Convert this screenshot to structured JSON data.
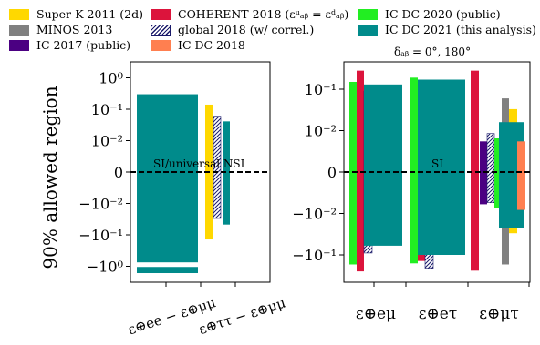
{
  "legend": [
    {
      "label": "Super-K 2011 (2d)",
      "color": "#ffd800",
      "style": "solid"
    },
    {
      "label": "MINOS 2013",
      "color": "#808080",
      "style": "solid"
    },
    {
      "label": "IC 2017 (public)",
      "color": "#4b0082",
      "style": "solid"
    },
    {
      "label": "COHERENT 2018 (εᵘₐᵦ = εᵈₐᵦ)",
      "color": "#dc143c",
      "style": "solid"
    },
    {
      "label": "global 2018 (w/ correl.)",
      "color": "#1a1a6a",
      "style": "hatched"
    },
    {
      "label": "IC DC 2018",
      "color": "#ff7f50",
      "style": "solid"
    },
    {
      "label": "IC DC 2020 (public)",
      "color": "#22ee22",
      "style": "solid"
    },
    {
      "label": "IC DC 2021 (this analysis)",
      "color": "#008b8b",
      "style": "solid"
    }
  ],
  "legend_note": "δₐᵦ = 0°, 180°",
  "chart_data": [
    {
      "type": "bar",
      "panel": "left",
      "ylabel": "90% allowed region",
      "yscale": "symlog",
      "ylim": [
        -2,
        2
      ],
      "yticks": [
        "10⁰",
        "10⁻¹",
        "10⁻²",
        "0",
        "−10⁻²",
        "−10⁻¹",
        "−10⁰"
      ],
      "categories": [
        "ε⊕ee − ε⊕μμ",
        "ε⊕ττ − ε⊕μμ"
      ],
      "annotation": "SI/universal NSI",
      "series": [
        {
          "name": "global 2018 (w/ correl.)",
          "category": 0,
          "intervals": [
            [
              -0.11,
              0.25
            ]
          ]
        },
        {
          "name": "IC DC 2021 (this analysis)",
          "category": 0,
          "intervals": [
            [
              -0.75,
              0.3
            ],
            [
              -1.65,
              -1.05
            ]
          ]
        },
        {
          "name": "IC DC 2020 (public)",
          "category": 1,
          "intervals": [
            [
              -0.055,
              0.055
            ]
          ]
        },
        {
          "name": "Super-K 2011 (2d)",
          "category": 1,
          "intervals": [
            [
              -0.14,
              0.14
            ]
          ]
        },
        {
          "name": "global 2018 (w/ correl.)",
          "category": 1,
          "intervals": [
            [
              -0.03,
              0.06
            ]
          ]
        },
        {
          "name": "IC DC 2021 (this analysis)",
          "category": 1,
          "intervals": [
            [
              -0.047,
              0.041
            ]
          ]
        }
      ]
    },
    {
      "type": "bar",
      "panel": "right",
      "yscale": "symlog",
      "ylim": [
        -0.3,
        0.3
      ],
      "yticks": [
        "10⁻¹",
        "10⁻²",
        "0",
        "−10⁻²",
        "−10⁻¹"
      ],
      "categories": [
        "ε⊕eμ",
        "ε⊕eτ",
        "ε⊕μτ"
      ],
      "annotation": "SI",
      "series": [
        {
          "name": "IC DC 2020 (public)",
          "category": 0,
          "intervals": [
            [
              -0.17,
              0.15
            ]
          ]
        },
        {
          "name": "COHERENT 2018",
          "category": 0,
          "intervals": [
            [
              -0.25,
              0.28
            ]
          ]
        },
        {
          "name": "global 2018 (w/ correl.)",
          "category": 0,
          "intervals": [
            [
              -0.09,
              0.09
            ]
          ]
        },
        {
          "name": "IC DC 2021 (this analysis)",
          "category": 0,
          "intervals": [
            [
              -0.06,
              0.13
            ]
          ]
        },
        {
          "name": "IC DC 2020 (public)",
          "category": 1,
          "intervals": [
            [
              -0.16,
              0.19
            ]
          ]
        },
        {
          "name": "COHERENT 2018",
          "category": 1,
          "intervals": [
            [
              -0.14,
              0.075
            ]
          ]
        },
        {
          "name": "global 2018 (w/ correl.)",
          "category": 1,
          "intervals": [
            [
              -0.21,
              0.035
            ]
          ]
        },
        {
          "name": "IC DC 2021 (this analysis)",
          "category": 1,
          "intervals": [
            [
              -0.1,
              0.17
            ]
          ]
        },
        {
          "name": "COHERENT 2018",
          "category": 2,
          "intervals": [
            [
              -0.24,
              0.28
            ]
          ]
        },
        {
          "name": "IC 2017 (public)",
          "category": 2,
          "intervals": [
            [
              -0.006,
              0.0055
            ]
          ]
        },
        {
          "name": "global 2018 (w/ correl.)",
          "category": 2,
          "intervals": [
            [
              -0.0055,
              0.0085
            ]
          ]
        },
        {
          "name": "IC DC 2020 (public)",
          "category": 2,
          "intervals": [
            [
              -0.0075,
              0.0065
            ]
          ]
        },
        {
          "name": "MINOS 2013",
          "category": 2,
          "intervals": [
            [
              -0.17,
              0.06
            ]
          ]
        },
        {
          "name": "Super-K 2011 (2d)",
          "category": 2,
          "intervals": [
            [
              -0.03,
              0.033
            ]
          ]
        },
        {
          "name": "IC DC 2021 (this analysis)",
          "category": 2,
          "intervals": [
            [
              -0.023,
              0.016
            ]
          ]
        },
        {
          "name": "IC DC 2018",
          "category": 2,
          "intervals": [
            [
              -0.0082,
              0.0055
            ]
          ]
        }
      ]
    }
  ]
}
